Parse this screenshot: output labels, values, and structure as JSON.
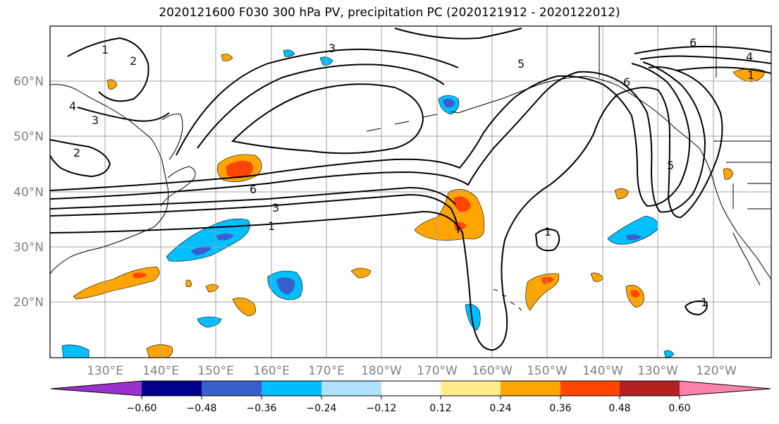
{
  "title": "2020121600 F030 300 hPa PV, precipitation PC (2020121912 - 2020122012)",
  "map": {
    "lat_labels": [
      "60°N",
      "50°N",
      "40°N",
      "30°N",
      "20°N"
    ],
    "lon_labels": [
      "130°E",
      "140°E",
      "150°E",
      "160°E",
      "170°E",
      "180°W",
      "170°W",
      "160°W",
      "150°W",
      "140°W",
      "130°W",
      "120°W"
    ],
    "contour_labels": [
      "1",
      "2",
      "3",
      "4",
      "5",
      "6"
    ],
    "colors": {
      "background": "#ffffff",
      "contour": "#000000",
      "grid": "#a0a0a0",
      "coast": "#000000",
      "tick_label": "#808080"
    }
  },
  "colorbar": {
    "ticks": [
      "−0.60",
      "−0.48",
      "−0.36",
      "−0.24",
      "−0.12",
      "0.12",
      "0.24",
      "0.36",
      "0.48",
      "0.60"
    ],
    "colors": [
      "#9932cc",
      "#00008b",
      "#3a5fcd",
      "#00bfff",
      "#b0e2ff",
      "#ffffff",
      "#ffec8b",
      "#ffa500",
      "#ff4500",
      "#b22222",
      "#ff82ab"
    ]
  }
}
